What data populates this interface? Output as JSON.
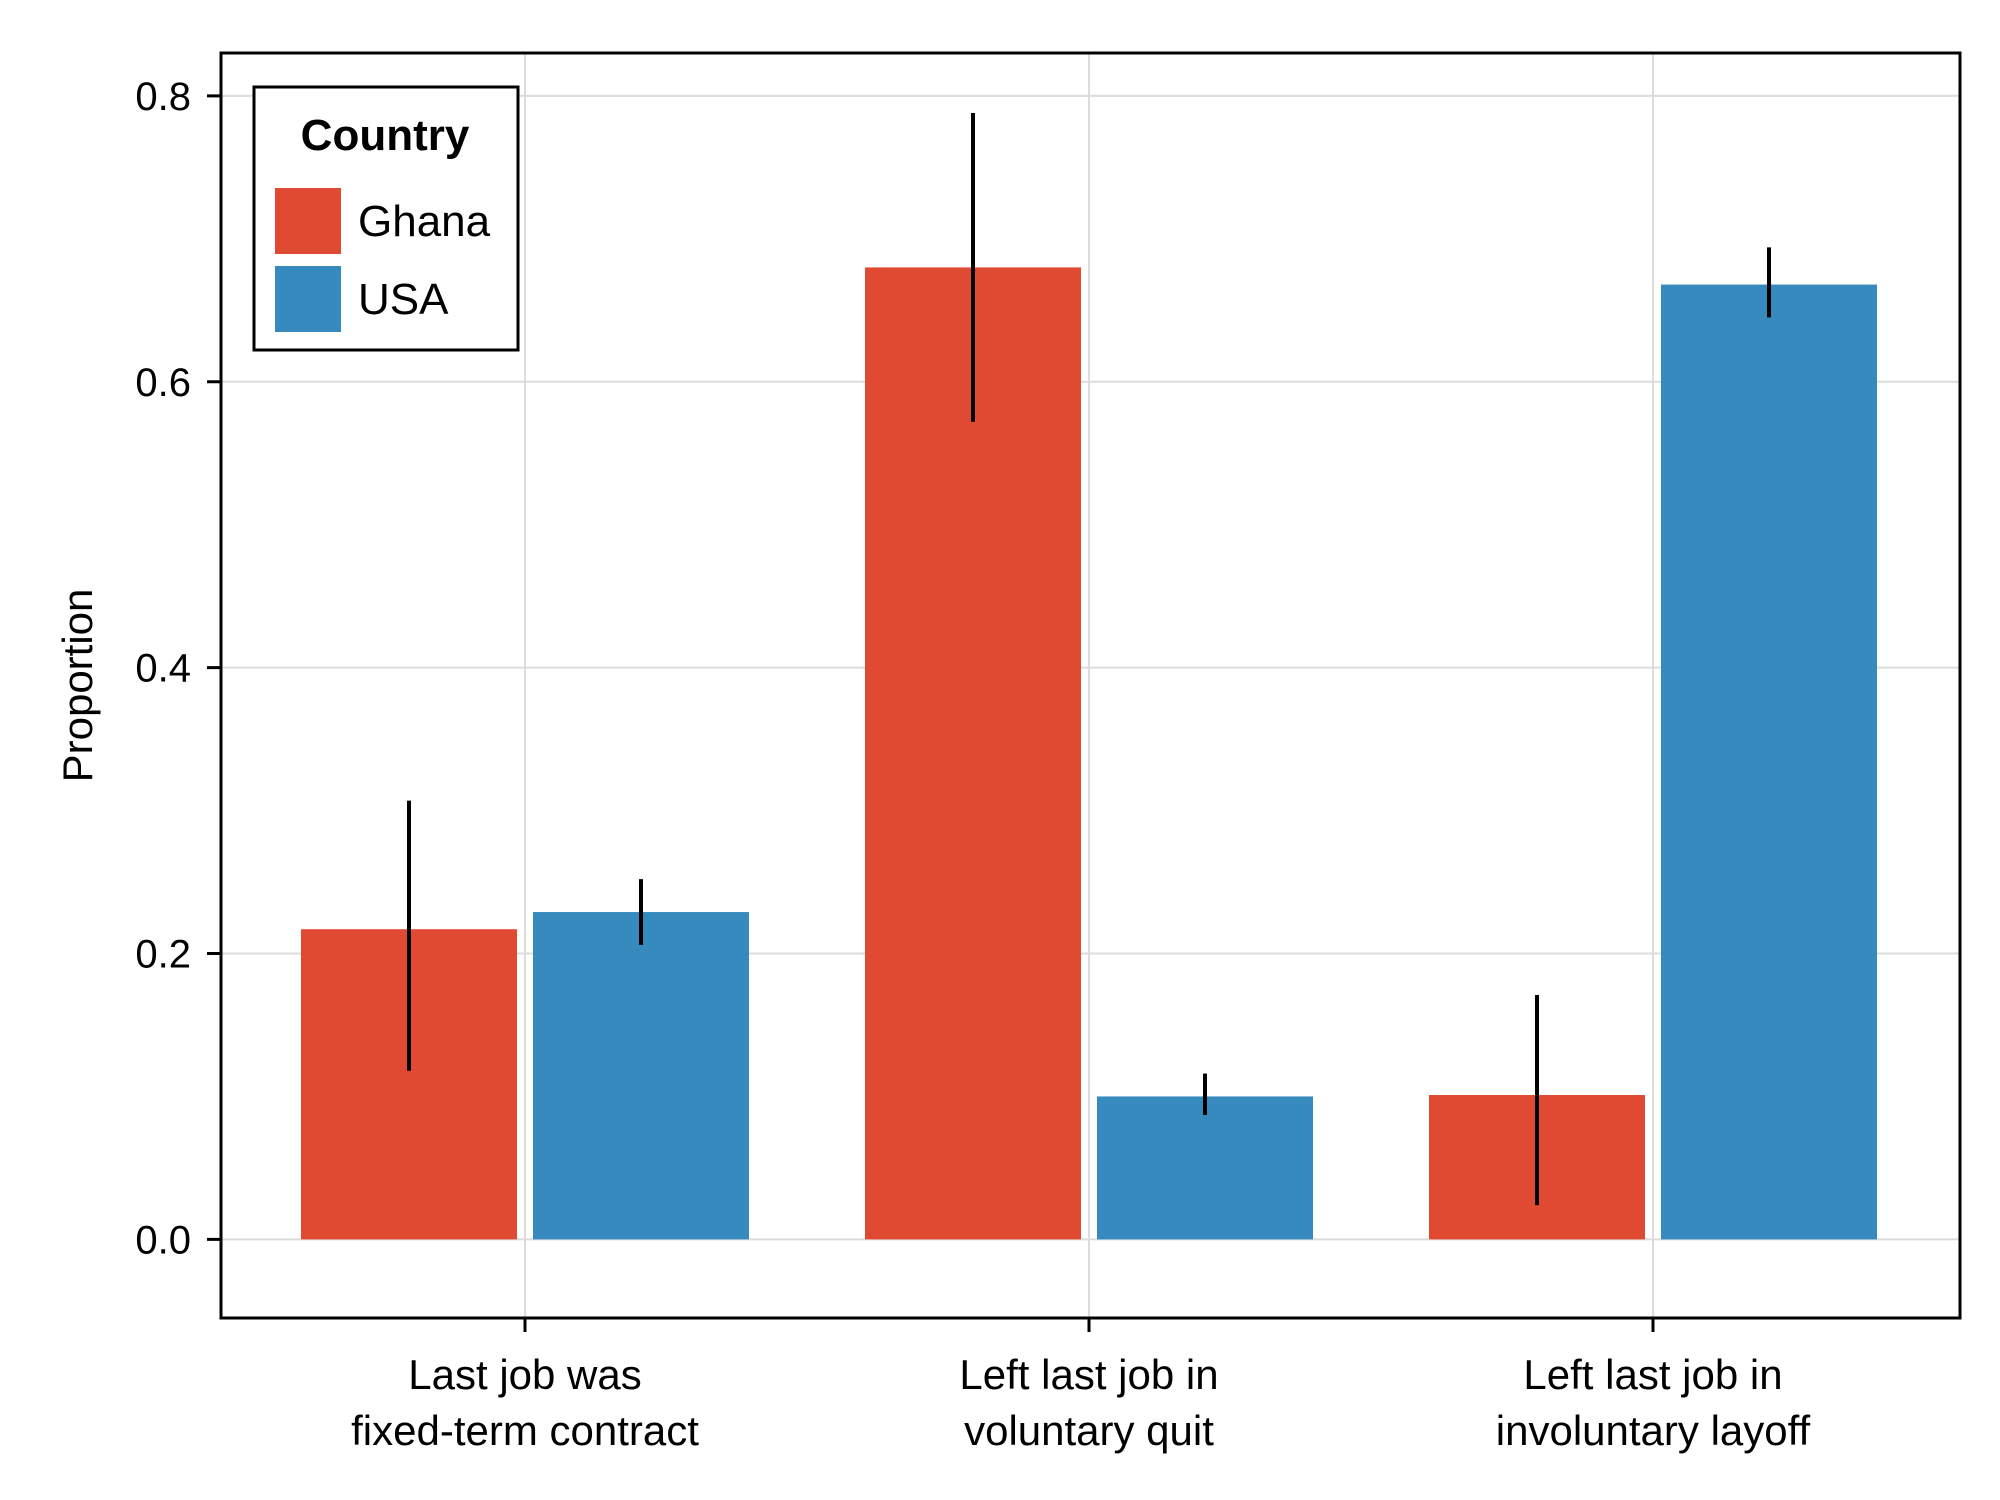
{
  "colors": {
    "Ghana": "#e04a33",
    "USA": "#368abd",
    "grid": "#dcdcdc",
    "axis": "#000000",
    "error_bar": "#000000"
  },
  "chart_data": {
    "type": "bar",
    "ylabel": "Proportion",
    "xlabel": "",
    "ylim": [
      -0.055,
      0.83
    ],
    "yticks": [
      0.0,
      0.2,
      0.4,
      0.6,
      0.8
    ],
    "ytick_labels": [
      "0.0",
      "0.2",
      "0.4",
      "0.6",
      "0.8"
    ],
    "grid": true,
    "categories": [
      [
        "Last job was",
        "fixed-term contract"
      ],
      [
        "Left last job in",
        "voluntary quit"
      ],
      [
        "Left last job in",
        "involuntary layoff"
      ]
    ],
    "series": [
      {
        "name": "Ghana",
        "color": "#e04a33",
        "values": [
          0.217,
          0.68,
          0.101
        ],
        "error_low": [
          0.118,
          0.572,
          0.024
        ],
        "error_high": [
          0.307,
          0.788,
          0.171
        ]
      },
      {
        "name": "USA",
        "color": "#368abd",
        "values": [
          0.229,
          0.1,
          0.668
        ],
        "error_low": [
          0.206,
          0.087,
          0.645
        ],
        "error_high": [
          0.252,
          0.116,
          0.694
        ]
      }
    ],
    "legend": {
      "title": "Country",
      "position": "top-left",
      "entries": [
        "Ghana",
        "USA"
      ]
    }
  }
}
